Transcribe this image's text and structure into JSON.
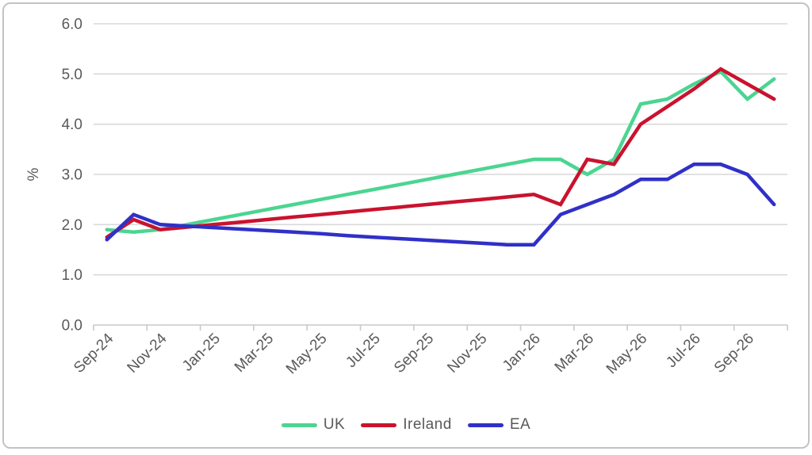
{
  "chart_data": {
    "type": "line",
    "title": "",
    "xlabel": "",
    "ylabel": "%",
    "ylim": [
      0.0,
      6.0
    ],
    "ytick_step": 1.0,
    "ytick_labels": [
      "0.0",
      "1.0",
      "2.0",
      "3.0",
      "4.0",
      "5.0",
      "6.0"
    ],
    "grid": "horizontal",
    "legend_position": "bottom",
    "x": [
      "Sep-24",
      "Oct-24",
      "Nov-24",
      "Dec-24",
      "Jan-25",
      "Feb-25",
      "Mar-25",
      "Apr-25",
      "May-25",
      "Jun-25",
      "Jul-25",
      "Aug-25",
      "Sep-25",
      "Oct-25",
      "Nov-25",
      "Dec-25",
      "Jan-26",
      "Feb-26",
      "Mar-26",
      "Apr-26",
      "May-26",
      "Jun-26",
      "Jul-26",
      "Aug-26",
      "Sep-26",
      "Oct-26"
    ],
    "xtick_labels_shown": [
      "Sep-24",
      "Nov-24",
      "Jan-25",
      "Mar-25",
      "May-25",
      "Jul-25",
      "Sep-25",
      "Nov-25",
      "Jan-26",
      "Mar-26",
      "May-26",
      "Jul-26",
      "Sep-26"
    ],
    "series": [
      {
        "name": "UK",
        "color": "#4BD591",
        "values": [
          1.9,
          1.85,
          1.9,
          2.0,
          2.1,
          2.2,
          2.3,
          2.4,
          2.5,
          2.6,
          2.7,
          2.8,
          2.9,
          3.0,
          3.1,
          3.2,
          3.3,
          3.3,
          3.0,
          3.3,
          4.4,
          4.5,
          4.8,
          5.05,
          4.5,
          4.9
        ]
      },
      {
        "name": "Ireland",
        "color": "#C9132E",
        "values": [
          1.75,
          2.1,
          1.9,
          1.95,
          2.0,
          2.05,
          2.1,
          2.15,
          2.2,
          2.25,
          2.3,
          2.35,
          2.4,
          2.45,
          2.5,
          2.55,
          2.6,
          2.4,
          3.3,
          3.2,
          4.0,
          4.35,
          4.7,
          5.1,
          4.8,
          4.5
        ]
      },
      {
        "name": "EA",
        "color": "#3030C8",
        "values": [
          1.7,
          2.2,
          2.0,
          1.97,
          1.94,
          1.91,
          1.88,
          1.85,
          1.82,
          1.78,
          1.75,
          1.72,
          1.69,
          1.66,
          1.63,
          1.6,
          1.6,
          2.2,
          2.4,
          2.6,
          2.9,
          2.9,
          3.2,
          3.2,
          3.0,
          2.4
        ]
      }
    ],
    "style": {
      "text_color": "#595959",
      "gridline_color": "#D9D9D9",
      "axis_color": "#C9C9C9",
      "frame_border_color": "#C3C3C3",
      "line_width": 4.5
    }
  }
}
